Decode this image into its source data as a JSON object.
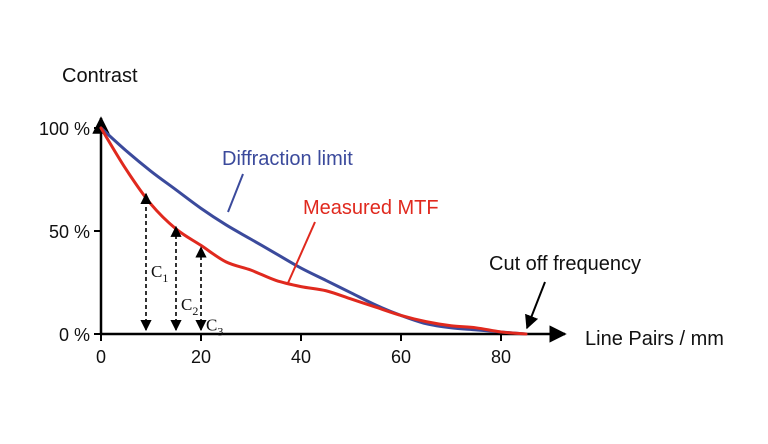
{
  "chart_data": {
    "type": "line",
    "ylabel": "Contrast",
    "xlabel": "Line Pairs / mm",
    "xlim": [
      0,
      89
    ],
    "ylim": [
      0,
      100
    ],
    "x_ticks": [
      0,
      20,
      40,
      60,
      80
    ],
    "y_ticks": [
      {
        "value": 0,
        "label": "0 %"
      },
      {
        "value": 50,
        "label": "50 %"
      },
      {
        "value": 100,
        "label": "100 %"
      }
    ],
    "grid": false,
    "series": [
      {
        "name": "Diffraction limit",
        "color": "#3b4a9c",
        "x": [
          0,
          5,
          10,
          15,
          20,
          25,
          30,
          35,
          40,
          45,
          50,
          55,
          60,
          65,
          70,
          75,
          80,
          85
        ],
        "y": [
          100,
          89,
          79,
          70,
          61,
          53,
          46,
          39,
          32,
          26,
          20,
          14,
          9,
          5,
          3,
          2,
          1,
          0
        ]
      },
      {
        "name": "Measured MTF",
        "color": "#e0291e",
        "x": [
          0,
          5,
          10,
          15,
          20,
          25,
          30,
          35,
          40,
          45,
          50,
          55,
          60,
          65,
          70,
          75,
          80,
          85
        ],
        "y": [
          100,
          80,
          63,
          51,
          43,
          35,
          31,
          26,
          23,
          21,
          17,
          13,
          9,
          6,
          4,
          3,
          1,
          0
        ]
      }
    ],
    "contrast_markers": [
      {
        "label": "C",
        "subscript": "1",
        "x": 9,
        "y": 69
      },
      {
        "label": "C",
        "subscript": "2",
        "x": 15,
        "y": 53
      },
      {
        "label": "C",
        "subscript": "3",
        "x": 20,
        "y": 43
      }
    ],
    "annotations": [
      {
        "text": "Cut off frequency",
        "target_x": 85,
        "target_y": 0
      }
    ],
    "axis_color": "#000000"
  }
}
